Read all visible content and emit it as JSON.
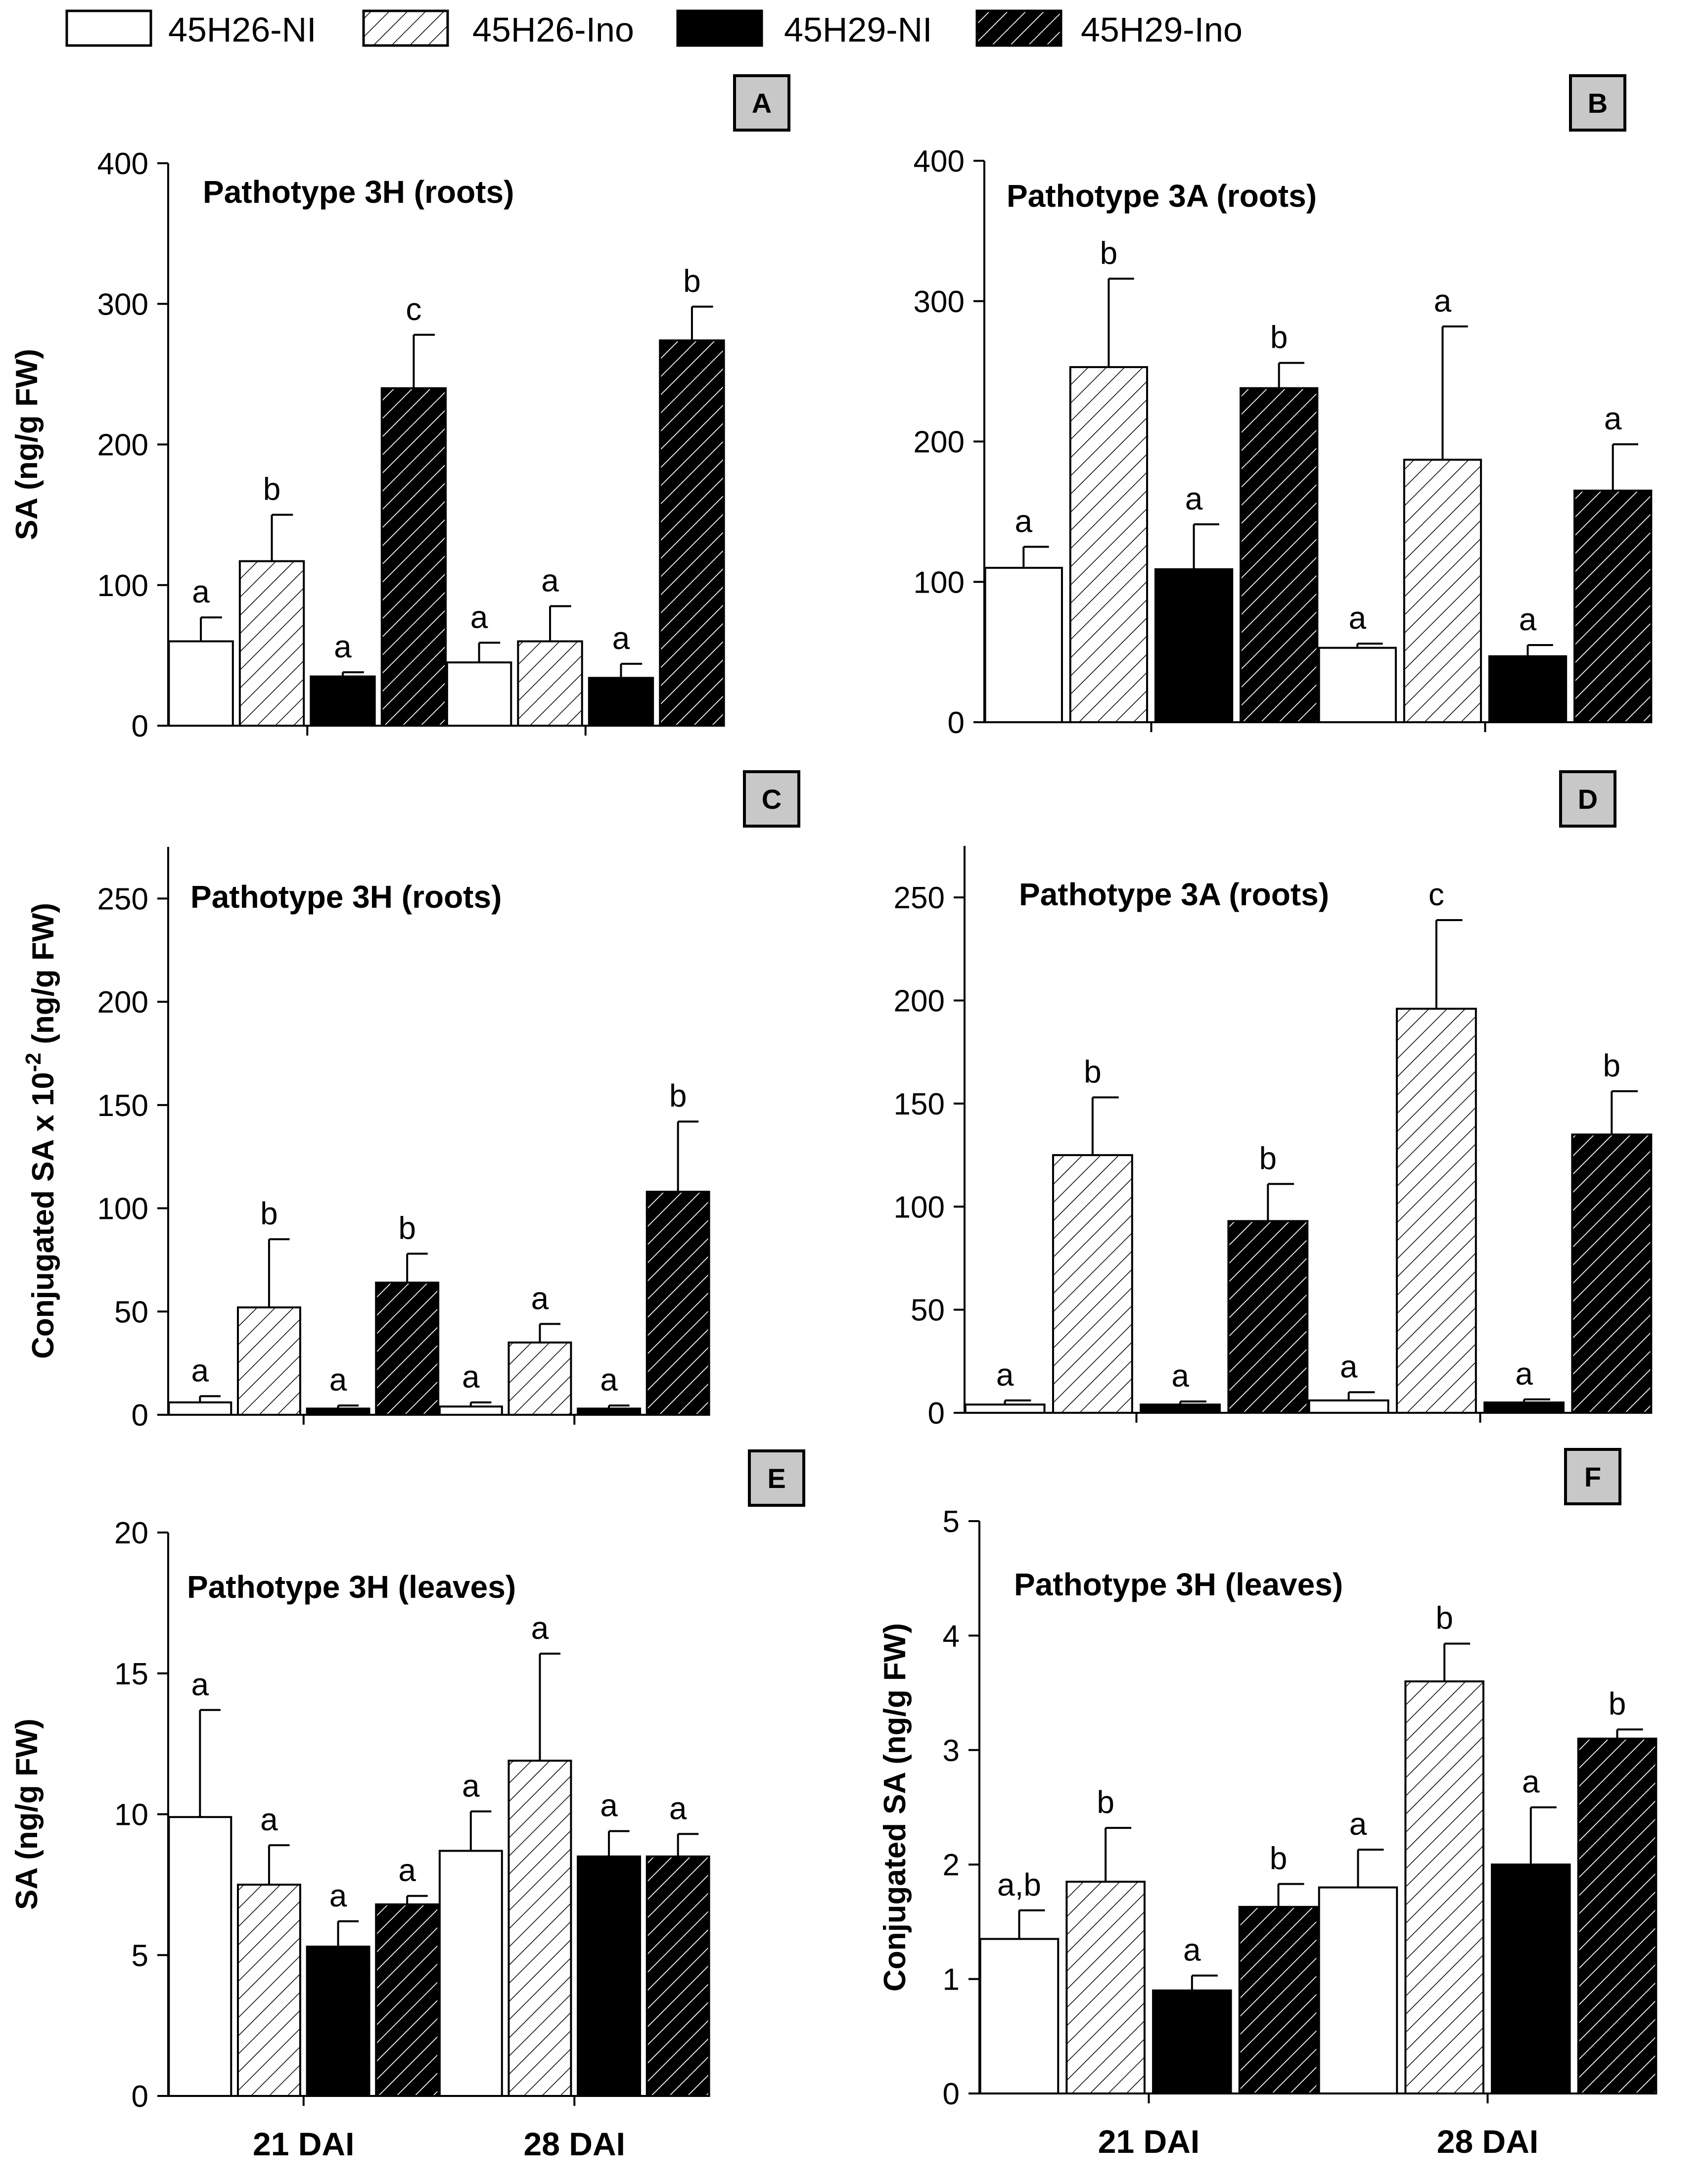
{
  "legend": [
    {
      "name": "45H26-NI",
      "fill": "white"
    },
    {
      "name": "45H26-Ino",
      "fill": "hatch-light"
    },
    {
      "name": "45H29-NI",
      "fill": "black"
    },
    {
      "name": "45H29-Ino",
      "fill": "hatch-dark"
    }
  ],
  "colors": {
    "bar_black": "#000000",
    "bar_white": "#ffffff",
    "badge_bg": "#c8c8c8",
    "axis": "#000000"
  },
  "chart_data": [
    {
      "id": "A",
      "type": "bar",
      "title": "Pathotype 3H (roots)",
      "ylabel": "SA (ng/g  FW)",
      "ylabel_sup": "",
      "ylabel_tail": "",
      "ylim": [
        0,
        400
      ],
      "yticks": [
        0,
        100,
        200,
        300,
        400
      ],
      "categories": [
        "21 DAI",
        "28 DAI"
      ],
      "show_xlabels": false,
      "series": [
        {
          "name": "45H26-NI",
          "values": [
            60,
            45
          ],
          "errors": [
            17,
            14
          ],
          "letters": [
            "a",
            "a"
          ]
        },
        {
          "name": "45H26-Ino",
          "values": [
            117,
            60
          ],
          "errors": [
            33,
            25
          ],
          "letters": [
            "b",
            "a"
          ]
        },
        {
          "name": "45H29-NI",
          "values": [
            35,
            34
          ],
          "errors": [
            3,
            10
          ],
          "letters": [
            "a",
            "a"
          ]
        },
        {
          "name": "45H29-Ino",
          "values": [
            240,
            274
          ],
          "errors": [
            38,
            24
          ],
          "letters": [
            "c",
            "b"
          ]
        }
      ]
    },
    {
      "id": "B",
      "type": "bar",
      "title": "Pathotype 3A (roots)",
      "ylabel": "",
      "ylabel_sup": "",
      "ylabel_tail": "",
      "ylim": [
        0,
        400
      ],
      "yticks": [
        0,
        100,
        200,
        300,
        400
      ],
      "categories": [
        "21 DAI",
        "28 DAI"
      ],
      "show_xlabels": false,
      "series": [
        {
          "name": "45H26-NI",
          "values": [
            110,
            53
          ],
          "errors": [
            15,
            3
          ],
          "letters": [
            "a",
            "a"
          ]
        },
        {
          "name": "45H26-Ino",
          "values": [
            253,
            187
          ],
          "errors": [
            63,
            95
          ],
          "letters": [
            "b",
            "a"
          ]
        },
        {
          "name": "45H29-NI",
          "values": [
            109,
            47
          ],
          "errors": [
            32,
            8
          ],
          "letters": [
            "a",
            "a"
          ]
        },
        {
          "name": "45H29-Ino",
          "values": [
            238,
            165
          ],
          "errors": [
            18,
            33
          ],
          "letters": [
            "b",
            "a"
          ]
        }
      ]
    },
    {
      "id": "C",
      "type": "bar",
      "title": "Pathotype 3H (roots)",
      "ylabel": "Conjugated SA x 10",
      "ylabel_sup": "-2",
      "ylabel_tail": " (ng/g  FW)",
      "ylim": [
        0,
        275
      ],
      "yticks": [
        0,
        50,
        100,
        150,
        200,
        250
      ],
      "categories": [
        "21 DAI",
        "28 DAI"
      ],
      "show_xlabels": false,
      "series": [
        {
          "name": "45H26-NI",
          "values": [
            6,
            4
          ],
          "errors": [
            3,
            2
          ],
          "letters": [
            "a",
            "a"
          ]
        },
        {
          "name": "45H26-Ino",
          "values": [
            52,
            35
          ],
          "errors": [
            33,
            9
          ],
          "letters": [
            "b",
            "a"
          ]
        },
        {
          "name": "45H29-NI",
          "values": [
            3,
            3
          ],
          "errors": [
            1.5,
            1.5
          ],
          "letters": [
            "a",
            "a"
          ]
        },
        {
          "name": "45H29-Ino",
          "values": [
            64,
            108
          ],
          "errors": [
            14,
            34
          ],
          "letters": [
            "b",
            "b"
          ]
        }
      ]
    },
    {
      "id": "D",
      "type": "bar",
      "title": "Pathotype 3A (roots)",
      "ylabel": "",
      "ylabel_sup": "",
      "ylabel_tail": "",
      "ylim": [
        0,
        275
      ],
      "yticks": [
        0,
        50,
        100,
        150,
        200,
        250
      ],
      "categories": [
        "21 DAI",
        "28 DAI"
      ],
      "show_xlabels": false,
      "series": [
        {
          "name": "45H26-NI",
          "values": [
            4,
            6
          ],
          "errors": [
            2,
            4
          ],
          "letters": [
            "a",
            "a"
          ]
        },
        {
          "name": "45H26-Ino",
          "values": [
            125,
            196
          ],
          "errors": [
            28,
            43
          ],
          "letters": [
            "b",
            "c"
          ]
        },
        {
          "name": "45H29-NI",
          "values": [
            4,
            5
          ],
          "errors": [
            1.5,
            1.5
          ],
          "letters": [
            "a",
            "a"
          ]
        },
        {
          "name": "45H29-Ino",
          "values": [
            93,
            135
          ],
          "errors": [
            18,
            21
          ],
          "letters": [
            "b",
            "b"
          ]
        }
      ]
    },
    {
      "id": "E",
      "type": "bar",
      "title": "Pathotype 3H (leaves)",
      "ylabel": "SA (ng/g  FW)",
      "ylabel_sup": "",
      "ylabel_tail": "",
      "ylim": [
        0,
        20
      ],
      "yticks": [
        0,
        5,
        10,
        15,
        20
      ],
      "categories": [
        "21 DAI",
        "28 DAI"
      ],
      "show_xlabels": true,
      "series": [
        {
          "name": "45H26-NI",
          "values": [
            9.9,
            8.7
          ],
          "errors": [
            3.8,
            1.4
          ],
          "letters": [
            "a",
            "a"
          ]
        },
        {
          "name": "45H26-Ino",
          "values": [
            7.5,
            11.9
          ],
          "errors": [
            1.4,
            3.8
          ],
          "letters": [
            "a",
            "a"
          ]
        },
        {
          "name": "45H29-NI",
          "values": [
            5.3,
            8.5
          ],
          "errors": [
            0.9,
            0.9
          ],
          "letters": [
            "a",
            "a"
          ]
        },
        {
          "name": "45H29-Ino",
          "values": [
            6.8,
            8.5
          ],
          "errors": [
            0.3,
            0.8
          ],
          "letters": [
            "a",
            "a"
          ]
        }
      ]
    },
    {
      "id": "F",
      "type": "bar",
      "title": "Pathotype 3H (leaves)",
      "ylabel": "Conjugated SA (ng/g  FW)",
      "ylabel_sup": "",
      "ylabel_tail": "",
      "ylim": [
        0,
        5
      ],
      "yticks": [
        0,
        1,
        2,
        3,
        4,
        5
      ],
      "categories": [
        "21 DAI",
        "28 DAI"
      ],
      "show_xlabels": true,
      "series": [
        {
          "name": "45H26-NI",
          "values": [
            1.35,
            1.8
          ],
          "errors": [
            0.25,
            0.33
          ],
          "letters": [
            "a,b",
            "a"
          ]
        },
        {
          "name": "45H26-Ino",
          "values": [
            1.85,
            3.6
          ],
          "errors": [
            0.47,
            0.33
          ],
          "letters": [
            "b",
            "b"
          ]
        },
        {
          "name": "45H29-NI",
          "values": [
            0.9,
            2.0
          ],
          "errors": [
            0.13,
            0.5
          ],
          "letters": [
            "a",
            "a"
          ]
        },
        {
          "name": "45H29-Ino",
          "values": [
            1.63,
            3.1
          ],
          "errors": [
            0.2,
            0.08
          ],
          "letters": [
            "b",
            "b"
          ]
        }
      ]
    }
  ]
}
